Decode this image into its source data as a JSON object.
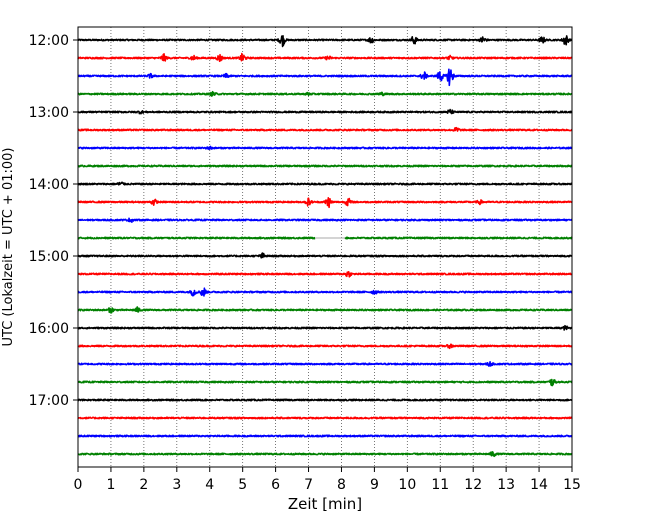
{
  "chart_data": {
    "type": "line",
    "title": "",
    "xlabel": "Zeit  [min]",
    "ylabel": "UTC (Lokalzeit = UTC + 01:00)",
    "xlim": [
      0,
      15
    ],
    "x_ticks": [
      0,
      1,
      2,
      3,
      4,
      5,
      6,
      7,
      8,
      9,
      10,
      11,
      12,
      13,
      14,
      15
    ],
    "x_tick_labels": [
      "0",
      "1",
      "2",
      "3",
      "4",
      "5",
      "6",
      "7",
      "8",
      "9",
      "10",
      "11",
      "12",
      "13",
      "14",
      "15"
    ],
    "y_tick_labels": [
      "12:00",
      "13:00",
      "14:00",
      "15:00",
      "16:00",
      "17:00"
    ],
    "grid": "vertical dotted at each minute",
    "colors": [
      "#000000",
      "#ff0000",
      "#0000ff",
      "#008000"
    ],
    "series": [
      {
        "start": "12:00",
        "color": "#000000",
        "events": [
          [
            6.2,
            1.0
          ],
          [
            8.9,
            0.5
          ],
          [
            10.2,
            0.7
          ],
          [
            12.3,
            0.6
          ],
          [
            14.1,
            0.5
          ],
          [
            14.8,
            0.9
          ]
        ]
      },
      {
        "start": "12:15",
        "color": "#ff0000",
        "events": [
          [
            2.6,
            0.6
          ],
          [
            3.5,
            0.4
          ],
          [
            4.3,
            0.6
          ],
          [
            5.0,
            0.7
          ],
          [
            7.6,
            0.3
          ],
          [
            11.3,
            0.3
          ]
        ]
      },
      {
        "start": "12:30",
        "color": "#0000ff",
        "events": [
          [
            2.2,
            0.3
          ],
          [
            4.5,
            0.3
          ],
          [
            10.5,
            0.7
          ],
          [
            11.0,
            0.9
          ],
          [
            11.3,
            1.8
          ]
        ]
      },
      {
        "start": "12:45",
        "color": "#008000",
        "events": [
          [
            4.1,
            0.3
          ],
          [
            7.0,
            0.2
          ],
          [
            9.2,
            0.3
          ]
        ]
      },
      {
        "start": "13:00",
        "color": "#000000",
        "events": [
          [
            1.9,
            0.2
          ],
          [
            11.3,
            0.4
          ]
        ]
      },
      {
        "start": "13:15",
        "color": "#ff0000",
        "events": [
          [
            11.5,
            0.4
          ]
        ]
      },
      {
        "start": "13:30",
        "color": "#0000ff",
        "events": [
          [
            4.0,
            0.2
          ]
        ]
      },
      {
        "start": "13:45",
        "color": "#008000",
        "events": []
      },
      {
        "start": "14:00",
        "color": "#000000",
        "events": [
          [
            1.3,
            0.4
          ]
        ]
      },
      {
        "start": "14:15",
        "color": "#ff0000",
        "events": [
          [
            2.3,
            0.5
          ],
          [
            7.0,
            0.6
          ],
          [
            7.6,
            0.9
          ],
          [
            8.2,
            0.6
          ],
          [
            12.2,
            0.3
          ]
        ]
      },
      {
        "start": "14:30",
        "color": "#0000ff",
        "events": [
          [
            1.6,
            0.3
          ]
        ]
      },
      {
        "start": "14:45",
        "color": "#008000",
        "gap": [
          7.2,
          8.1
        ],
        "events": []
      },
      {
        "start": "15:00",
        "color": "#000000",
        "events": [
          [
            5.6,
            0.4
          ]
        ]
      },
      {
        "start": "15:15",
        "color": "#ff0000",
        "events": [
          [
            8.2,
            0.5
          ]
        ]
      },
      {
        "start": "15:30",
        "color": "#0000ff",
        "events": [
          [
            3.5,
            0.6
          ],
          [
            3.8,
            0.8
          ],
          [
            9.0,
            0.3
          ]
        ]
      },
      {
        "start": "15:45",
        "color": "#008000",
        "events": [
          [
            1.0,
            0.4
          ],
          [
            1.8,
            0.4
          ]
        ]
      },
      {
        "start": "16:00",
        "color": "#000000",
        "events": [
          [
            14.8,
            0.3
          ]
        ]
      },
      {
        "start": "16:15",
        "color": "#ff0000",
        "events": [
          [
            11.3,
            0.3
          ]
        ]
      },
      {
        "start": "16:30",
        "color": "#0000ff",
        "events": [
          [
            12.5,
            0.3
          ]
        ]
      },
      {
        "start": "16:45",
        "color": "#008000",
        "events": [
          [
            14.4,
            0.6
          ]
        ]
      },
      {
        "start": "17:00",
        "color": "#000000",
        "events": []
      },
      {
        "start": "17:15",
        "color": "#ff0000",
        "events": []
      },
      {
        "start": "17:30",
        "color": "#0000ff",
        "events": []
      },
      {
        "start": "17:45",
        "color": "#008000",
        "events": [
          [
            12.6,
            0.4
          ]
        ]
      }
    ]
  }
}
